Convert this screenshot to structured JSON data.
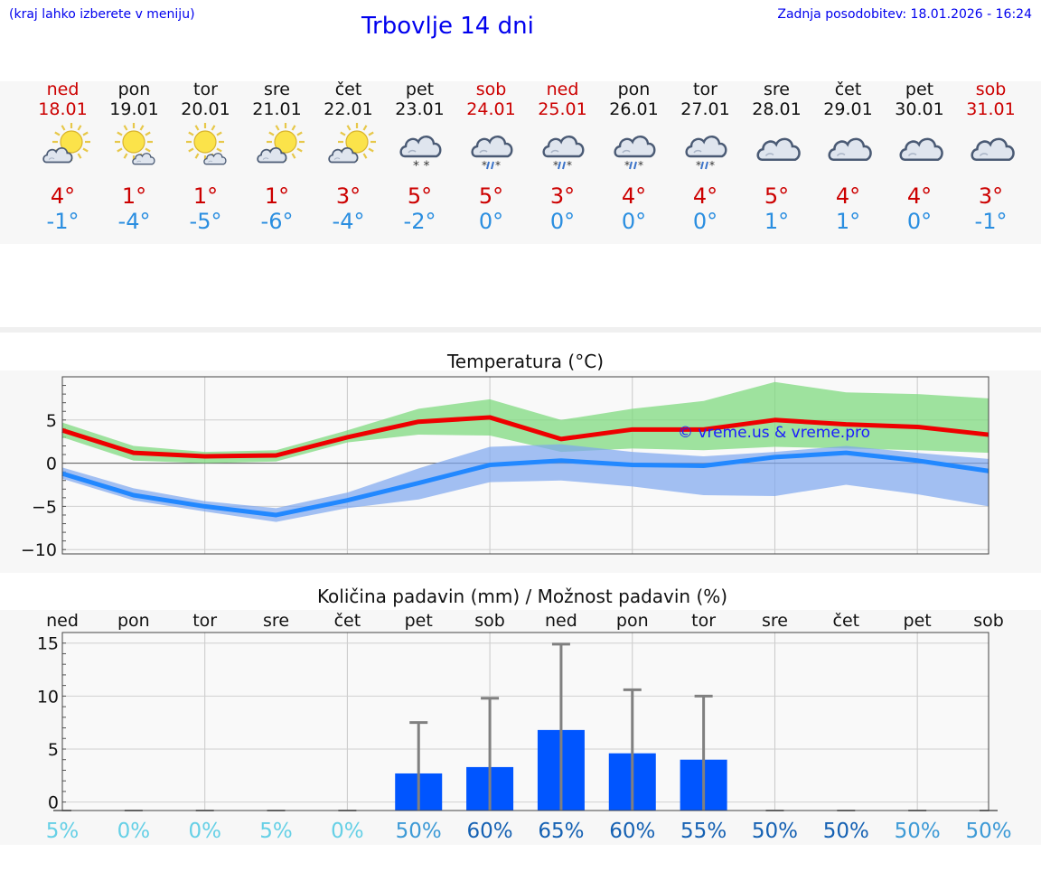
{
  "header": {
    "location_hint": "(kraj lahko izberete v meniju)",
    "title": "Trbovlje 14 dni",
    "updated": "Zadnja posodobitev: 18.01.2026 - 16:24"
  },
  "days": [
    {
      "name": "ned",
      "date": "18.01",
      "weekend": true,
      "icon": "sun-cloud-icon",
      "tmax": "4°",
      "tmin": "-1°"
    },
    {
      "name": "pon",
      "date": "19.01",
      "weekend": false,
      "icon": "sun-small-cloud-icon",
      "tmax": "1°",
      "tmin": "-4°"
    },
    {
      "name": "tor",
      "date": "20.01",
      "weekend": false,
      "icon": "sun-small-cloud-icon",
      "tmax": "1°",
      "tmin": "-5°"
    },
    {
      "name": "sre",
      "date": "21.01",
      "weekend": false,
      "icon": "sun-cloud-icon",
      "tmax": "1°",
      "tmin": "-6°"
    },
    {
      "name": "čet",
      "date": "22.01",
      "weekend": false,
      "icon": "sun-cloud-icon",
      "tmax": "3°",
      "tmin": "-4°"
    },
    {
      "name": "pet",
      "date": "23.01",
      "weekend": false,
      "icon": "cloud-snow-icon",
      "tmax": "5°",
      "tmin": "-2°"
    },
    {
      "name": "sob",
      "date": "24.01",
      "weekend": true,
      "icon": "cloud-sleet-icon",
      "tmax": "5°",
      "tmin": "0°"
    },
    {
      "name": "ned",
      "date": "25.01",
      "weekend": true,
      "icon": "cloud-sleet-icon",
      "tmax": "3°",
      "tmin": "0°"
    },
    {
      "name": "pon",
      "date": "26.01",
      "weekend": false,
      "icon": "cloud-sleet-icon",
      "tmax": "4°",
      "tmin": "0°"
    },
    {
      "name": "tor",
      "date": "27.01",
      "weekend": false,
      "icon": "cloud-sleet-icon",
      "tmax": "4°",
      "tmin": "0°"
    },
    {
      "name": "sre",
      "date": "28.01",
      "weekend": false,
      "icon": "cloud-icon",
      "tmax": "5°",
      "tmin": "1°"
    },
    {
      "name": "čet",
      "date": "29.01",
      "weekend": false,
      "icon": "cloud-icon",
      "tmax": "4°",
      "tmin": "1°"
    },
    {
      "name": "pet",
      "date": "30.01",
      "weekend": false,
      "icon": "cloud-icon",
      "tmax": "4°",
      "tmin": "0°"
    },
    {
      "name": "sob",
      "date": "31.01",
      "weekend": true,
      "icon": "cloud-icon",
      "tmax": "3°",
      "tmin": "-1°"
    }
  ],
  "colors": {
    "max": "#ee0000",
    "min": "#2288ff",
    "max_band": "#7fd97f",
    "min_band": "#7ea6ef",
    "bar": "#0055ff",
    "err": "#808080",
    "weekend": "#cc0000"
  },
  "chart_data": [
    {
      "type": "line",
      "title": "Temperatura (°C)",
      "watermark": "© vreme.us & vreme.pro",
      "x": [
        0,
        1,
        2,
        3,
        4,
        5,
        6,
        7,
        8,
        9,
        10,
        11,
        12,
        13
      ],
      "ylim": [
        -10.5,
        10
      ],
      "yticks": [
        -10,
        -5,
        0,
        5
      ],
      "ytick_labels": [
        "−10",
        "−5",
        "0",
        "5"
      ],
      "series": [
        {
          "name": "max",
          "values": [
            3.8,
            1.2,
            0.8,
            0.9,
            3.0,
            4.8,
            5.3,
            2.8,
            3.9,
            3.9,
            5.0,
            4.5,
            4.2,
            3.3
          ]
        },
        {
          "name": "min",
          "values": [
            -1.2,
            -3.7,
            -5.0,
            -6.0,
            -4.3,
            -2.3,
            -0.2,
            0.3,
            -0.2,
            -0.3,
            0.7,
            1.2,
            0.3,
            -0.9
          ]
        }
      ],
      "bands": [
        {
          "name": "max_range",
          "upper": [
            4.7,
            2.0,
            1.3,
            1.5,
            3.8,
            6.3,
            7.4,
            5.0,
            6.3,
            7.2,
            9.4,
            8.2,
            8.0,
            7.5
          ],
          "lower": [
            3.0,
            0.3,
            0.0,
            0.2,
            2.4,
            3.3,
            3.2,
            1.3,
            1.7,
            1.5,
            1.9,
            1.7,
            1.5,
            1.2
          ]
        },
        {
          "name": "min_range",
          "upper": [
            -0.5,
            -2.9,
            -4.4,
            -5.2,
            -3.4,
            -0.6,
            1.9,
            2.2,
            1.3,
            0.8,
            1.3,
            2.0,
            1.2,
            0.5
          ],
          "lower": [
            -1.8,
            -4.3,
            -5.6,
            -6.8,
            -5.2,
            -4.2,
            -2.2,
            -2.0,
            -2.7,
            -3.7,
            -3.8,
            -2.5,
            -3.6,
            -5.0
          ]
        }
      ]
    },
    {
      "type": "bar",
      "title": "Količina padavin (mm) / Možnost padavin (%)",
      "categories": [
        "ned",
        "pon",
        "tor",
        "sre",
        "čet",
        "pet",
        "sob",
        "ned",
        "pon",
        "tor",
        "sre",
        "čet",
        "pet",
        "sob"
      ],
      "values": [
        0,
        0,
        0,
        0,
        0,
        2.7,
        3.3,
        6.8,
        4.6,
        4.0,
        0,
        0,
        0,
        0
      ],
      "error_high": [
        0,
        0,
        0,
        0,
        0,
        7.5,
        9.8,
        14.9,
        10.6,
        10.0,
        0,
        0,
        0,
        0
      ],
      "ylim": [
        -0.8,
        16
      ],
      "yticks": [
        0,
        5,
        10,
        15
      ],
      "ytick_labels": [
        "0",
        "5",
        "10",
        "15"
      ],
      "probability": [
        "5%",
        "0%",
        "0%",
        "5%",
        "0%",
        "50%",
        "60%",
        "65%",
        "60%",
        "55%",
        "50%",
        "50%",
        "50%",
        "50%"
      ],
      "probability_colors": [
        "#66d0e6",
        "#66d0e6",
        "#66d0e6",
        "#66d0e6",
        "#66d0e6",
        "#3d9ad6",
        "#1561b3",
        "#1561b3",
        "#1561b3",
        "#1561b3",
        "#1561b3",
        "#1561b3",
        "#3d9ad6",
        "#3d9ad6"
      ]
    }
  ]
}
